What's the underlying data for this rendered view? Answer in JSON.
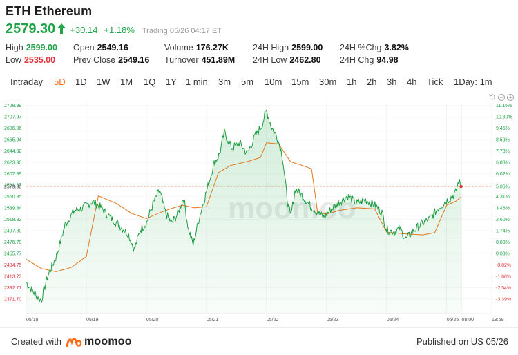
{
  "header": {
    "title": "ETH Ethereum",
    "price": "2579.30",
    "change": "+30.14",
    "change_pct": "+1.18%",
    "trading": "Trading  05/26 04:17 ET"
  },
  "stats": {
    "row1": [
      {
        "label": "High",
        "value": "2599.00",
        "tone": "green"
      },
      {
        "label": "Open",
        "value": "2549.16",
        "tone": "plain"
      },
      {
        "label": "Volume",
        "value": "176.27K",
        "tone": "plain"
      },
      {
        "label": "24H High",
        "value": "2599.00",
        "tone": "plain"
      },
      {
        "label": "24H %Chg",
        "value": "3.82%",
        "tone": "plain"
      }
    ],
    "row2": [
      {
        "label": "Low",
        "value": "2535.00",
        "tone": "red"
      },
      {
        "label": "Prev Close",
        "value": "2549.16",
        "tone": "plain"
      },
      {
        "label": "Turnover",
        "value": "451.89M",
        "tone": "plain"
      },
      {
        "label": "24H Low",
        "value": "2462.80",
        "tone": "plain"
      },
      {
        "label": "24H Chg",
        "value": "94.98",
        "tone": "plain"
      }
    ]
  },
  "tabs": [
    "Intraday",
    "5D",
    "1D",
    "1W",
    "1M",
    "1Q",
    "1Y",
    "1 min",
    "3m",
    "5m",
    "10m",
    "15m",
    "30m",
    "1h",
    "2h",
    "3h",
    "4h",
    "Tick",
    "1Day: 1m"
  ],
  "active_tab": "5D",
  "icons": [
    "undo-icon",
    "zoom-out-icon",
    "zoom-in-icon"
  ],
  "colors": {
    "up": "#1fa548",
    "down": "#e2343a",
    "accent": "#ff6a13",
    "price_line": "#1a9c3e",
    "avg_line": "#e2771c",
    "prev_close_line": "#f0a080"
  },
  "footer": {
    "created_with": "Created with",
    "logo_text": "moomoo",
    "published": "Published on US 05/26"
  },
  "watermark": "moomoo",
  "chart_data": {
    "type": "line",
    "ylim": [
      2360,
      2735
    ],
    "prev_close": 2549.16,
    "last_price": 2579.3,
    "left_ticks": [
      "2728.99",
      "2707.97",
      "2686.96",
      "2665.94",
      "2644.92",
      "2623.90",
      "2602.89",
      "2581.87",
      "2579.30",
      "2560.85",
      "2539.84",
      "2518.82",
      "2497.80",
      "2476.78",
      "2455.77",
      "2434.75",
      "2413.73",
      "2392.71",
      "2371.70"
    ],
    "left_tick_values": [
      2728.99,
      2707.97,
      2686.96,
      2665.94,
      2644.92,
      2623.9,
      2602.89,
      2581.87,
      2579.3,
      2560.85,
      2539.84,
      2518.82,
      2497.8,
      2476.78,
      2455.77,
      2434.75,
      2413.73,
      2392.71,
      2371.7
    ],
    "right_ticks": [
      "11.16%",
      "10.30%",
      "9.45%",
      "8.59%",
      "7.73%",
      "6.88%",
      "6.02%",
      "5.06%",
      "4.31%",
      "3.46%",
      "2.60%",
      "1.74%",
      "0.89%",
      "0.03%",
      "-0.82%",
      "-1.68%",
      "-2.54%",
      "-3.39%"
    ],
    "right_tick_values": [
      2728.99,
      2707.97,
      2686.96,
      2665.94,
      2644.92,
      2623.9,
      2602.89,
      2579.3,
      2560.85,
      2539.84,
      2518.82,
      2497.8,
      2476.78,
      2455.77,
      2434.75,
      2413.73,
      2392.71,
      2371.7
    ],
    "x_labels": [
      "05/18",
      "05/19",
      "05/20",
      "05/21",
      "05/22",
      "05/23",
      "05/24",
      "05/25",
      "08:00",
      "18:59"
    ],
    "x_label_days": [
      0,
      1,
      2,
      3,
      4,
      5,
      6,
      7,
      7.25,
      7.75
    ],
    "x_range_days": [
      0,
      7.75
    ],
    "price_series": [
      {
        "d": 0.0,
        "v": 2402
      },
      {
        "d": 0.12,
        "v": 2385
      },
      {
        "d": 0.25,
        "v": 2368
      },
      {
        "d": 0.35,
        "v": 2412
      },
      {
        "d": 0.5,
        "v": 2450
      },
      {
        "d": 0.65,
        "v": 2510
      },
      {
        "d": 0.8,
        "v": 2535
      },
      {
        "d": 0.95,
        "v": 2540
      },
      {
        "d": 1.1,
        "v": 2552
      },
      {
        "d": 1.25,
        "v": 2540
      },
      {
        "d": 1.4,
        "v": 2522
      },
      {
        "d": 1.55,
        "v": 2508
      },
      {
        "d": 1.7,
        "v": 2492
      },
      {
        "d": 1.8,
        "v": 2462
      },
      {
        "d": 1.9,
        "v": 2500
      },
      {
        "d": 2.0,
        "v": 2512
      },
      {
        "d": 2.12,
        "v": 2550
      },
      {
        "d": 2.22,
        "v": 2572
      },
      {
        "d": 2.32,
        "v": 2530
      },
      {
        "d": 2.42,
        "v": 2512
      },
      {
        "d": 2.52,
        "v": 2528
      },
      {
        "d": 2.62,
        "v": 2560
      },
      {
        "d": 2.7,
        "v": 2500
      },
      {
        "d": 2.78,
        "v": 2472
      },
      {
        "d": 2.88,
        "v": 2522
      },
      {
        "d": 3.0,
        "v": 2570
      },
      {
        "d": 3.12,
        "v": 2620
      },
      {
        "d": 3.22,
        "v": 2640
      },
      {
        "d": 3.3,
        "v": 2680
      },
      {
        "d": 3.42,
        "v": 2650
      },
      {
        "d": 3.55,
        "v": 2660
      },
      {
        "d": 3.68,
        "v": 2640
      },
      {
        "d": 3.8,
        "v": 2670
      },
      {
        "d": 3.92,
        "v": 2692
      },
      {
        "d": 4.0,
        "v": 2720
      },
      {
        "d": 4.08,
        "v": 2690
      },
      {
        "d": 4.18,
        "v": 2670
      },
      {
        "d": 4.26,
        "v": 2640
      },
      {
        "d": 4.34,
        "v": 2560
      },
      {
        "d": 4.4,
        "v": 2522
      },
      {
        "d": 4.48,
        "v": 2575
      },
      {
        "d": 4.6,
        "v": 2562
      },
      {
        "d": 4.72,
        "v": 2545
      },
      {
        "d": 4.85,
        "v": 2532
      },
      {
        "d": 4.95,
        "v": 2522
      },
      {
        "d": 5.08,
        "v": 2538
      },
      {
        "d": 5.2,
        "v": 2550
      },
      {
        "d": 5.35,
        "v": 2562
      },
      {
        "d": 5.5,
        "v": 2548
      },
      {
        "d": 5.65,
        "v": 2555
      },
      {
        "d": 5.8,
        "v": 2545
      },
      {
        "d": 5.92,
        "v": 2532
      },
      {
        "d": 6.0,
        "v": 2500
      },
      {
        "d": 6.12,
        "v": 2495
      },
      {
        "d": 6.22,
        "v": 2502
      },
      {
        "d": 6.32,
        "v": 2482
      },
      {
        "d": 6.45,
        "v": 2498
      },
      {
        "d": 6.58,
        "v": 2510
      },
      {
        "d": 6.72,
        "v": 2520
      },
      {
        "d": 6.85,
        "v": 2538
      },
      {
        "d": 6.98,
        "v": 2552
      },
      {
        "d": 7.08,
        "v": 2560
      },
      {
        "d": 7.15,
        "v": 2568
      },
      {
        "d": 7.2,
        "v": 2590
      },
      {
        "d": 7.24,
        "v": 2579.3
      }
    ],
    "avg_series": [
      {
        "d": 0.0,
        "v": 2445
      },
      {
        "d": 0.25,
        "v": 2428
      },
      {
        "d": 0.5,
        "v": 2422
      },
      {
        "d": 0.75,
        "v": 2430
      },
      {
        "d": 1.0,
        "v": 2450
      },
      {
        "d": 1.2,
        "v": 2562
      },
      {
        "d": 1.5,
        "v": 2548
      },
      {
        "d": 1.75,
        "v": 2530
      },
      {
        "d": 2.0,
        "v": 2520
      },
      {
        "d": 2.2,
        "v": 2530
      },
      {
        "d": 2.4,
        "v": 2538
      },
      {
        "d": 2.6,
        "v": 2545
      },
      {
        "d": 2.8,
        "v": 2540
      },
      {
        "d": 3.0,
        "v": 2542
      },
      {
        "d": 3.2,
        "v": 2605
      },
      {
        "d": 3.4,
        "v": 2618
      },
      {
        "d": 3.7,
        "v": 2626
      },
      {
        "d": 3.9,
        "v": 2633
      },
      {
        "d": 4.0,
        "v": 2660
      },
      {
        "d": 4.2,
        "v": 2658
      },
      {
        "d": 4.4,
        "v": 2625
      },
      {
        "d": 4.6,
        "v": 2618
      },
      {
        "d": 4.75,
        "v": 2612
      },
      {
        "d": 4.85,
        "v": 2532
      },
      {
        "d": 5.0,
        "v": 2528
      },
      {
        "d": 5.2,
        "v": 2535
      },
      {
        "d": 5.5,
        "v": 2540
      },
      {
        "d": 5.8,
        "v": 2538
      },
      {
        "d": 6.0,
        "v": 2495
      },
      {
        "d": 6.3,
        "v": 2492
      },
      {
        "d": 6.6,
        "v": 2490
      },
      {
        "d": 6.8,
        "v": 2494
      },
      {
        "d": 7.0,
        "v": 2545
      },
      {
        "d": 7.15,
        "v": 2552
      },
      {
        "d": 7.24,
        "v": 2560
      }
    ]
  }
}
